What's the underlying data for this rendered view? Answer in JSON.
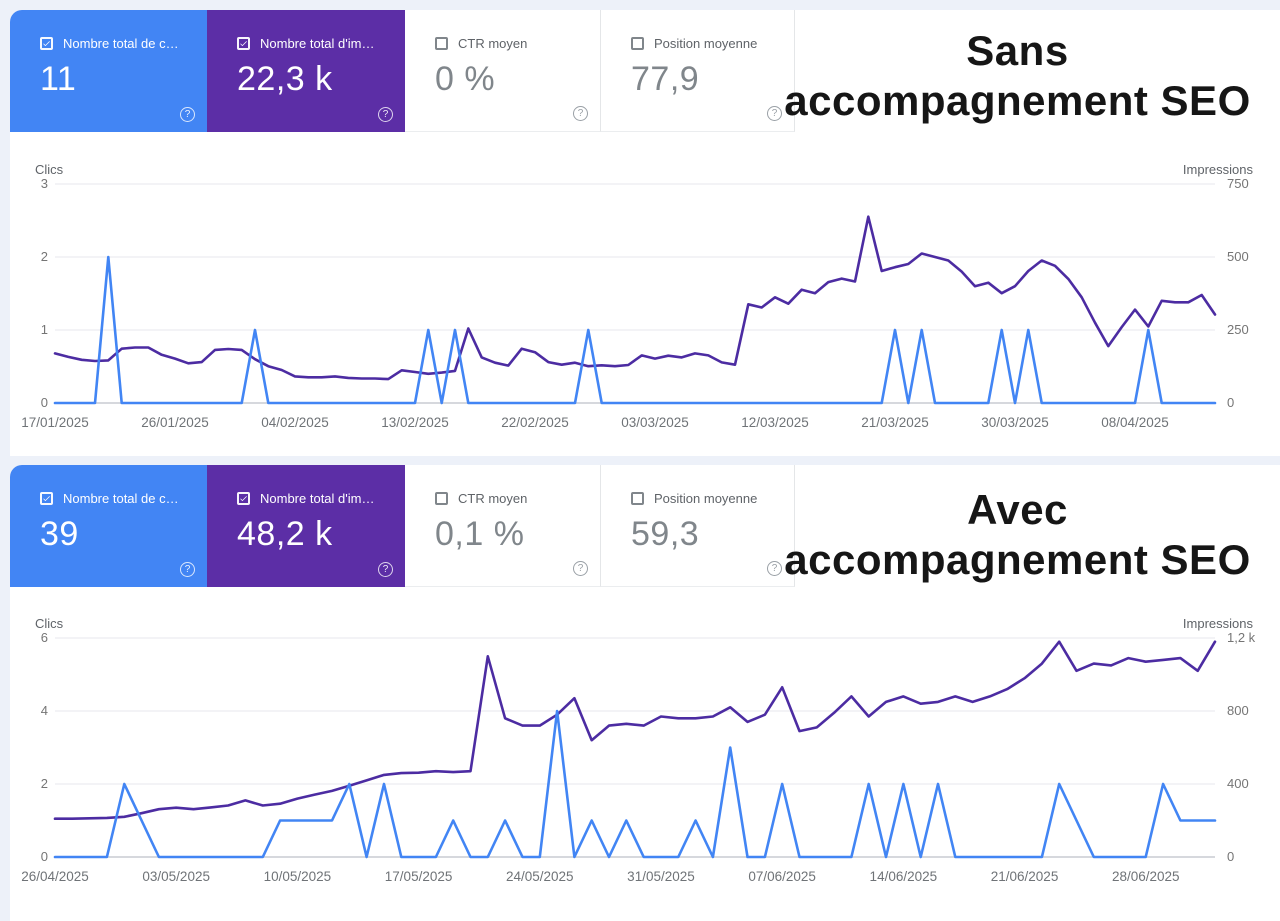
{
  "colors": {
    "card-blue": "#4285f4",
    "card-purple": "#5c2ea6",
    "line-blue": "#4285f4",
    "line-purple": "#4c2ca2",
    "grid": "#ececf0",
    "grid-zero": "#c8ccd2",
    "page-bg": "#edf1f9"
  },
  "ui": {
    "help_glyph": "?"
  },
  "panels": [
    {
      "title_line1": "Sans",
      "title_line2": "accompagnement SEO",
      "cards": [
        {
          "label": "Nombre total de c…",
          "value": "11",
          "checked": true
        },
        {
          "label": "Nombre total d'im…",
          "value": "22,3 k",
          "checked": true
        },
        {
          "label": "CTR moyen",
          "value": "0 %",
          "checked": false
        },
        {
          "label": "Position moyenne",
          "value": "77,9",
          "checked": false
        }
      ]
    },
    {
      "title_line1": "Avec",
      "title_line2": "accompagnement SEO",
      "cards": [
        {
          "label": "Nombre total de c…",
          "value": "39",
          "checked": true
        },
        {
          "label": "Nombre total d'im…",
          "value": "48,2 k",
          "checked": true
        },
        {
          "label": "CTR moyen",
          "value": "0,1 %",
          "checked": false
        },
        {
          "label": "Position moyenne",
          "value": "59,3",
          "checked": false
        }
      ]
    }
  ],
  "chart_data": [
    {
      "type": "line",
      "title": "Sans accompagnement SEO",
      "grid": "horizontal",
      "legend": "none",
      "left_axis": {
        "label": "Clics",
        "max": 3,
        "ticks": [
          "3",
          "2",
          "1",
          "0"
        ]
      },
      "right_axis": {
        "label": "Impressions",
        "max": 750,
        "ticks": [
          "750",
          "500",
          "250",
          "0"
        ]
      },
      "total_days": 87,
      "x_ticks": [
        {
          "day": 0,
          "label": "17/01/2025"
        },
        {
          "day": 9,
          "label": "26/01/2025"
        },
        {
          "day": 18,
          "label": "04/02/2025"
        },
        {
          "day": 27,
          "label": "13/02/2025"
        },
        {
          "day": 36,
          "label": "22/02/2025"
        },
        {
          "day": 45,
          "label": "03/03/2025"
        },
        {
          "day": 54,
          "label": "12/03/2025"
        },
        {
          "day": 63,
          "label": "21/03/2025"
        },
        {
          "day": 72,
          "label": "30/03/2025"
        },
        {
          "day": 81,
          "label": "08/04/2025"
        }
      ],
      "series": [
        {
          "name": "Impressions",
          "axis": "right",
          "color": "#4c2ca2",
          "values": [
            170,
            158,
            148,
            144,
            146,
            186,
            190,
            190,
            165,
            152,
            136,
            140,
            182,
            185,
            182,
            150,
            126,
            113,
            91,
            88,
            88,
            91,
            86,
            84,
            84,
            82,
            112,
            106,
            100,
            104,
            110,
            255,
            156,
            138,
            128,
            186,
            174,
            140,
            131,
            138,
            126,
            129,
            126,
            130,
            163,
            152,
            162,
            156,
            170,
            163,
            139,
            131,
            338,
            327,
            362,
            340,
            388,
            376,
            414,
            426,
            416,
            638,
            452,
            465,
            476,
            512,
            500,
            488,
            450,
            400,
            412,
            376,
            400,
            452,
            488,
            470,
            425,
            362,
            275,
            195,
            260,
            320,
            262,
            350,
            345,
            345,
            370,
            303
          ]
        },
        {
          "name": "Clics",
          "axis": "left",
          "color": "#4285f4",
          "values": [
            0,
            0,
            0,
            0,
            2,
            0,
            0,
            0,
            0,
            0,
            0,
            0,
            0,
            0,
            0,
            1,
            0,
            0,
            0,
            0,
            0,
            0,
            0,
            0,
            0,
            0,
            0,
            0,
            1,
            0,
            1,
            0,
            0,
            0,
            0,
            0,
            0,
            0,
            0,
            0,
            1,
            0,
            0,
            0,
            0,
            0,
            0,
            0,
            0,
            0,
            0,
            0,
            0,
            0,
            0,
            0,
            0,
            0,
            0,
            0,
            0,
            0,
            0,
            1,
            0,
            1,
            0,
            0,
            0,
            0,
            0,
            1,
            0,
            1,
            0,
            0,
            0,
            0,
            0,
            0,
            0,
            0,
            1,
            0,
            0,
            0,
            0,
            0
          ]
        }
      ]
    },
    {
      "type": "line",
      "title": "Avec accompagnement SEO",
      "grid": "horizontal",
      "legend": "none",
      "left_axis": {
        "label": "Clics",
        "max": 6,
        "ticks": [
          "6",
          "4",
          "2",
          "0"
        ]
      },
      "right_axis": {
        "label": "Impressions",
        "max": 1200,
        "ticks": [
          "1,2 k",
          "800",
          "400",
          "0"
        ]
      },
      "total_days": 67,
      "x_ticks": [
        {
          "day": 0,
          "label": "26/04/2025"
        },
        {
          "day": 7,
          "label": "03/05/2025"
        },
        {
          "day": 14,
          "label": "10/05/2025"
        },
        {
          "day": 21,
          "label": "17/05/2025"
        },
        {
          "day": 28,
          "label": "24/05/2025"
        },
        {
          "day": 35,
          "label": "31/05/2025"
        },
        {
          "day": 42,
          "label": "07/06/2025"
        },
        {
          "day": 49,
          "label": "14/06/2025"
        },
        {
          "day": 56,
          "label": "21/06/2025"
        },
        {
          "day": 63,
          "label": "28/06/2025"
        }
      ],
      "series": [
        {
          "name": "Impressions",
          "axis": "right",
          "color": "#4c2ca2",
          "values": [
            210,
            210,
            212,
            214,
            220,
            240,
            262,
            270,
            262,
            272,
            282,
            310,
            282,
            292,
            320,
            342,
            362,
            390,
            420,
            450,
            460,
            462,
            470,
            465,
            470,
            1100,
            760,
            720,
            720,
            780,
            870,
            640,
            720,
            730,
            720,
            770,
            760,
            760,
            770,
            820,
            740,
            780,
            930,
            690,
            710,
            790,
            880,
            770,
            850,
            880,
            840,
            850,
            880,
            850,
            880,
            920,
            980,
            1060,
            1180,
            1020,
            1060,
            1050,
            1090,
            1070,
            1080,
            1090,
            1020,
            1180
          ]
        },
        {
          "name": "Clics",
          "axis": "left",
          "color": "#4285f4",
          "values": [
            0,
            0,
            0,
            0,
            2,
            1,
            0,
            0,
            0,
            0,
            0,
            0,
            0,
            1,
            1,
            1,
            1,
            2,
            0,
            2,
            0,
            0,
            0,
            1,
            0,
            0,
            1,
            0,
            0,
            4,
            0,
            1,
            0,
            1,
            0,
            0,
            0,
            1,
            0,
            3,
            0,
            0,
            2,
            0,
            0,
            0,
            0,
            2,
            0,
            2,
            0,
            2,
            0,
            0,
            0,
            0,
            0,
            0,
            2,
            1,
            0,
            0,
            0,
            0,
            2,
            1,
            1,
            1
          ]
        }
      ]
    }
  ]
}
